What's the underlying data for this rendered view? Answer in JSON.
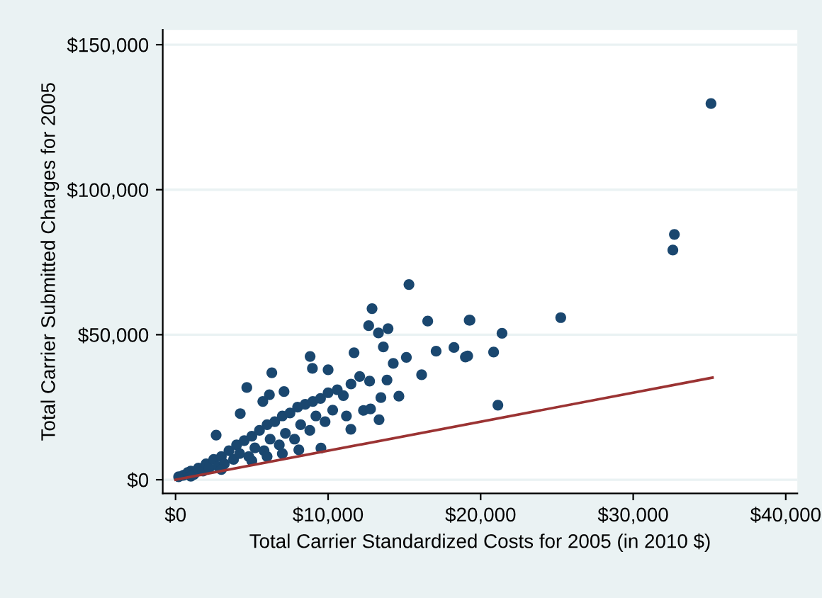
{
  "chart_data": {
    "type": "scatter",
    "xlabel": "Total Carrier Standardized Costs for 2005 (in 2010 $)",
    "ylabel": "Total Carrier Submitted Charges for 2005",
    "xlim": [
      -840,
      40760
    ],
    "ylim": [
      -4700,
      155100
    ],
    "xticks": [
      {
        "value": 0,
        "label": "$0"
      },
      {
        "value": 10000,
        "label": "$10,000"
      },
      {
        "value": 20000,
        "label": "$20,000"
      },
      {
        "value": 30000,
        "label": "$30,000"
      },
      {
        "value": 40000,
        "label": "$40,000"
      }
    ],
    "yticks": [
      {
        "value": 0,
        "label": "$0"
      },
      {
        "value": 50000,
        "label": "$50,000"
      },
      {
        "value": 100000,
        "label": "$100,000"
      },
      {
        "value": 150000,
        "label": "$150,000"
      }
    ],
    "grid": "y",
    "legend": false,
    "series": [
      {
        "marker": "circle",
        "color": "#1a476f",
        "x": [
          35100,
          32700,
          32600,
          25250,
          21400,
          19300,
          20850,
          19150,
          15300,
          12880,
          12660,
          13300,
          13930,
          16530,
          19250,
          13620,
          17080,
          18250,
          19000,
          15130,
          14270,
          11700,
          8820,
          8970,
          10000,
          6310,
          16130,
          21130,
          13340,
          11490,
          9530,
          8080,
          4670,
          4240,
          6150,
          5720,
          7110,
          12070,
          12720,
          13860,
          14640,
          13460,
          12320,
          12780,
          2660,
          200,
          500,
          800,
          1000,
          1200,
          1500,
          1800,
          2000,
          2200,
          2500,
          2800,
          3000,
          3200,
          3500,
          3800,
          4000,
          4200,
          4500,
          4800,
          5000,
          5200,
          5500,
          5800,
          6000,
          6200,
          6500,
          6800,
          7000,
          7200,
          7500,
          7800,
          8000,
          8200,
          8500,
          8800,
          9000,
          9200,
          9500,
          9800,
          10000,
          10300,
          10600,
          11000,
          11200,
          11500,
          3000,
          5000,
          7000,
          1000,
          6000
        ],
        "values": [
          129700,
          84600,
          79200,
          55900,
          50500,
          55000,
          44000,
          42700,
          67300,
          59000,
          53100,
          50600,
          52100,
          54700,
          55000,
          45800,
          44300,
          45600,
          42300,
          42200,
          40100,
          43800,
          42500,
          38400,
          37900,
          36900,
          36200,
          25700,
          20700,
          17400,
          10900,
          10300,
          31800,
          22800,
          29300,
          27000,
          30400,
          35600,
          34000,
          34400,
          28800,
          28300,
          23900,
          24400,
          15400,
          1000,
          1500,
          2500,
          3000,
          1800,
          4000,
          3000,
          5500,
          4000,
          7000,
          4500,
          8000,
          5500,
          10000,
          7000,
          12000,
          9000,
          13500,
          8000,
          15000,
          11000,
          17000,
          10000,
          19000,
          14000,
          20000,
          12000,
          22000,
          16000,
          23000,
          14000,
          25000,
          19000,
          26000,
          17000,
          27000,
          22000,
          28000,
          20000,
          30000,
          24000,
          31000,
          29000,
          22000,
          33000,
          3500,
          6500,
          9000,
          1200,
          8000
        ]
      },
      {
        "type": "line",
        "color": "#9b3333",
        "x": [
          0,
          35200
        ],
        "values": [
          0,
          35200
        ],
        "line_style": "solid",
        "marker": "none"
      }
    ]
  }
}
